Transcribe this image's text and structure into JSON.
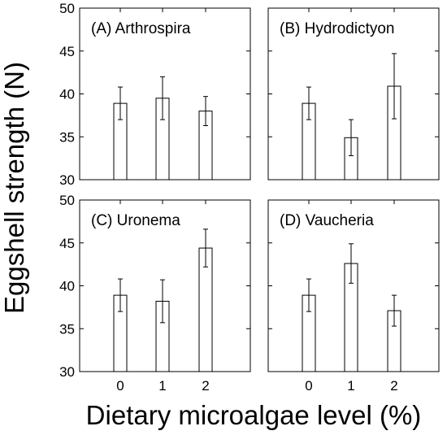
{
  "chart_data": {
    "type": "bar",
    "xlabel": "Dietary microalgae level (%)",
    "ylabel": "Eggshell strength (N)",
    "categories": [
      "0",
      "1",
      "2"
    ],
    "ylim": [
      30,
      50
    ],
    "yticks": [
      "30",
      "35",
      "40",
      "45",
      "50"
    ],
    "error_bars": true,
    "panels": [
      {
        "title": "(A) Arthrospira",
        "values": [
          38.9,
          39.5,
          38.0
        ],
        "errors": [
          1.9,
          2.5,
          1.7
        ]
      },
      {
        "title": "(B) Hydrodictyon",
        "values": [
          38.9,
          34.9,
          40.9
        ],
        "errors": [
          1.9,
          2.1,
          3.8
        ]
      },
      {
        "title": "(C) Uronema",
        "values": [
          38.9,
          38.2,
          44.4
        ],
        "errors": [
          1.9,
          2.5,
          2.2
        ]
      },
      {
        "title": "(D) Vaucheria",
        "values": [
          38.9,
          42.6,
          37.1
        ],
        "errors": [
          1.9,
          2.3,
          1.8
        ]
      }
    ]
  }
}
